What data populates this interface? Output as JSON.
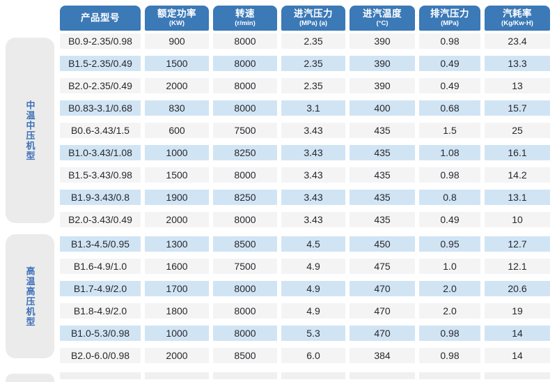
{
  "colors": {
    "header_bg": "#3b79b7",
    "header_text": "#ffffff",
    "row_gray": "#f4f4f5",
    "row_blue": "#d0e4f4",
    "sidebar_bg": "#ebebeb",
    "sidebar_text": "#3c70b8",
    "data_text": "#28282c"
  },
  "table": {
    "columns": [
      {
        "key": "model",
        "label": "产品型号",
        "unit": ""
      },
      {
        "key": "power",
        "label": "额定功率",
        "unit": "(KW)"
      },
      {
        "key": "speed",
        "label": "转速",
        "unit": "(r/min)"
      },
      {
        "key": "inlet_pressure",
        "label": "进汽压力",
        "unit": "(MPa) (a)"
      },
      {
        "key": "inlet_temp",
        "label": "进汽温度",
        "unit": "(°C)"
      },
      {
        "key": "exhaust_pressure",
        "label": "排汽压力",
        "unit": "(MPa)"
      },
      {
        "key": "steam_rate",
        "label": "汽耗率",
        "unit": "(Kg/Kw·H)"
      }
    ],
    "groups": [
      {
        "label": "中温中压机型",
        "rows": [
          {
            "model": "B0.9-2.35/0.98",
            "power": "900",
            "speed": "8000",
            "inlet_pressure": "2.35",
            "inlet_temp": "390",
            "exhaust_pressure": "0.98",
            "steam_rate": "23.4"
          },
          {
            "model": "B1.5-2.35/0.49",
            "power": "1500",
            "speed": "8000",
            "inlet_pressure": "2.35",
            "inlet_temp": "390",
            "exhaust_pressure": "0.49",
            "steam_rate": "13.3"
          },
          {
            "model": "B2.0-2.35/0.49",
            "power": "2000",
            "speed": "8000",
            "inlet_pressure": "2.35",
            "inlet_temp": "390",
            "exhaust_pressure": "0.49",
            "steam_rate": "13"
          },
          {
            "model": "B0.83-3.1/0.68",
            "power": "830",
            "speed": "8000",
            "inlet_pressure": "3.1",
            "inlet_temp": "400",
            "exhaust_pressure": "0.68",
            "steam_rate": "15.7"
          },
          {
            "model": "B0.6-3.43/1.5",
            "power": "600",
            "speed": "7500",
            "inlet_pressure": "3.43",
            "inlet_temp": "435",
            "exhaust_pressure": "1.5",
            "steam_rate": "25"
          },
          {
            "model": "B1.0-3.43/1.08",
            "power": "1000",
            "speed": "8250",
            "inlet_pressure": "3.43",
            "inlet_temp": "435",
            "exhaust_pressure": "1.08",
            "steam_rate": "16.1"
          },
          {
            "model": "B1.5-3.43/0.98",
            "power": "1500",
            "speed": "8000",
            "inlet_pressure": "3.43",
            "inlet_temp": "435",
            "exhaust_pressure": "0.98",
            "steam_rate": "14.2"
          },
          {
            "model": "B1.9-3.43/0.8",
            "power": "1900",
            "speed": "8250",
            "inlet_pressure": "3.43",
            "inlet_temp": "435",
            "exhaust_pressure": "0.8",
            "steam_rate": "13.1"
          },
          {
            "model": "B2.0-3.43/0.49",
            "power": "2000",
            "speed": "8000",
            "inlet_pressure": "3.43",
            "inlet_temp": "435",
            "exhaust_pressure": "0.49",
            "steam_rate": "10"
          }
        ]
      },
      {
        "label": "高温高压机型",
        "rows": [
          {
            "model": "B1.3-4.5/0.95",
            "power": "1300",
            "speed": "8500",
            "inlet_pressure": "4.5",
            "inlet_temp": "450",
            "exhaust_pressure": "0.95",
            "steam_rate": "12.7"
          },
          {
            "model": "B1.6-4.9/1.0",
            "power": "1600",
            "speed": "7500",
            "inlet_pressure": "4.9",
            "inlet_temp": "475",
            "exhaust_pressure": "1.0",
            "steam_rate": "12.1"
          },
          {
            "model": "B1.7-4.9/2.0",
            "power": "1700",
            "speed": "8000",
            "inlet_pressure": "4.9",
            "inlet_temp": "470",
            "exhaust_pressure": "2.0",
            "steam_rate": "20.6"
          },
          {
            "model": "B1.8-4.9/2.0",
            "power": "1800",
            "speed": "8000",
            "inlet_pressure": "4.9",
            "inlet_temp": "470",
            "exhaust_pressure": "2.0",
            "steam_rate": "19"
          },
          {
            "model": "B1.0-5.3/0.98",
            "power": "1000",
            "speed": "8000",
            "inlet_pressure": "5.3",
            "inlet_temp": "470",
            "exhaust_pressure": "0.98",
            "steam_rate": "14"
          },
          {
            "model": "B2.0-6.0/0.98",
            "power": "2000",
            "speed": "8500",
            "inlet_pressure": "6.0",
            "inlet_temp": "384",
            "exhaust_pressure": "0.98",
            "steam_rate": "14"
          }
        ]
      }
    ]
  }
}
